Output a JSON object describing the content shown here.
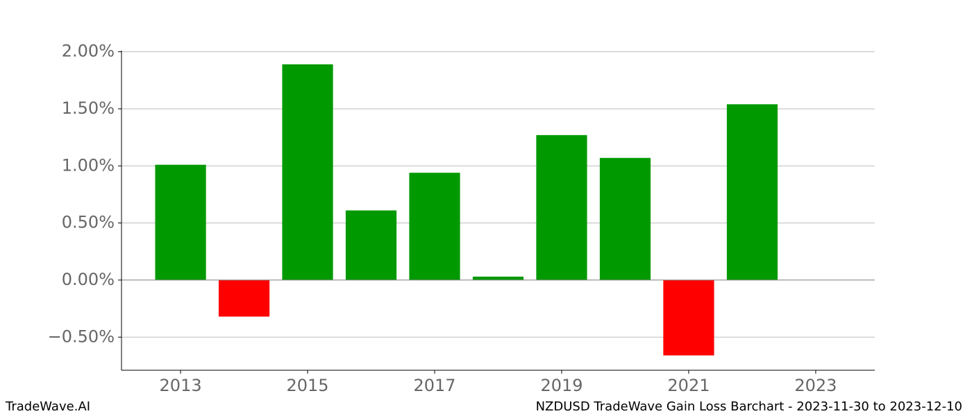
{
  "chart_data": {
    "type": "bar",
    "title": "NZDUSD TradeWave Gain Loss Barchart - 2023-11-30 to 2023-12-10",
    "watermark": "TradeWave.AI",
    "x": [
      2013,
      2014,
      2015,
      2016,
      2017,
      2018,
      2019,
      2020,
      2021,
      2022
    ],
    "values": [
      1.01,
      -0.32,
      1.89,
      0.61,
      0.94,
      0.03,
      1.27,
      1.07,
      -0.66,
      1.54
    ],
    "positive_color": "#009900",
    "negative_color": "#ff0000",
    "xlim": [
      2012.07,
      2023.93
    ],
    "xticks": [
      2013,
      2015,
      2017,
      2019,
      2021,
      2023
    ],
    "ylim": [
      -0.79,
      2.01
    ],
    "yticks": [
      {
        "value": -0.5,
        "label": "−0.50%"
      },
      {
        "value": 0,
        "label": "0.00%"
      },
      {
        "value": 0.5,
        "label": "0.50%"
      },
      {
        "value": 1,
        "label": "1.00%"
      },
      {
        "value": 1.5,
        "label": "1.50%"
      },
      {
        "value": 2,
        "label": "2.00%"
      }
    ],
    "grid": true
  }
}
